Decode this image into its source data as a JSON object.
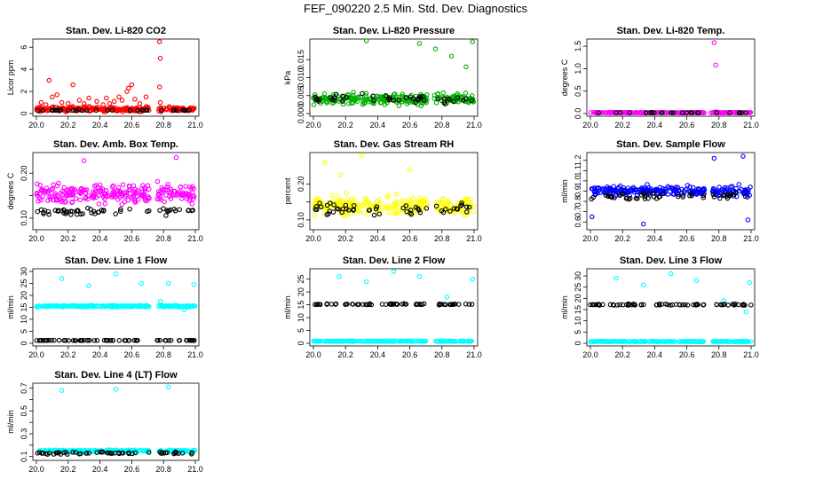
{
  "page": {
    "title": "FEF_090220  2.5 Min. Std. Dev. Diagnostics"
  },
  "chart_data": [
    {
      "type": "scatter",
      "title": "Stan. Dev. Li-820 CO2",
      "xlabel": "",
      "ylabel": "Licor ppm",
      "xlim": [
        20.0,
        21.0
      ],
      "ylim": [
        0,
        6.5
      ],
      "x_ticks": [
        "20.0",
        "20.2",
        "20.4",
        "20.6",
        "20.8",
        "21.0"
      ],
      "y_ticks": [
        0,
        2,
        4,
        6
      ],
      "series": [
        {
          "color": "#ff0000",
          "segments": [
            [
              20.0,
              20.71
            ],
            [
              20.77,
              21.0
            ]
          ],
          "base": 0.4,
          "noise": 0.35,
          "outliers": [
            [
              20.03,
              1.0
            ],
            [
              20.06,
              0.8
            ],
            [
              20.08,
              3.0
            ],
            [
              20.1,
              1.5
            ],
            [
              20.13,
              1.7
            ],
            [
              20.16,
              1.0
            ],
            [
              20.2,
              0.9
            ],
            [
              20.23,
              2.6
            ],
            [
              20.27,
              1.2
            ],
            [
              20.3,
              0.9
            ],
            [
              20.33,
              1.4
            ],
            [
              20.38,
              1.1
            ],
            [
              20.42,
              0.8
            ],
            [
              20.44,
              1.4
            ],
            [
              20.46,
              0.9
            ],
            [
              20.49,
              1.1
            ],
            [
              20.52,
              1.5
            ],
            [
              20.54,
              1.2
            ],
            [
              20.57,
              2.0
            ],
            [
              20.58,
              2.3
            ],
            [
              20.6,
              2.6
            ],
            [
              20.62,
              1.3
            ],
            [
              20.65,
              0.9
            ],
            [
              20.69,
              1.5
            ],
            [
              20.775,
              6.5
            ],
            [
              20.78,
              5.0
            ],
            [
              20.775,
              2.4
            ],
            [
              20.78,
              1.0
            ]
          ]
        },
        {
          "color": "#000000",
          "segments": [
            [
              20.0,
              20.71
            ],
            [
              20.77,
              21.0
            ]
          ],
          "base": 0.3,
          "noise": 0.08,
          "count": 35
        }
      ]
    },
    {
      "type": "scatter",
      "title": "Stan. Dev. Li-820 Pressure",
      "xlabel": "",
      "ylabel": "kPa",
      "xlim": [
        20.0,
        21.0
      ],
      "ylim": [
        0,
        0.02
      ],
      "x_ticks": [
        "20.0",
        "20.2",
        "20.4",
        "20.6",
        "20.8",
        "21.0"
      ],
      "y_ticks": [
        0,
        0.005,
        0.01,
        0.015
      ],
      "y_tick_labels": [
        "0.000",
        "0.005",
        "0.010",
        "0.015"
      ],
      "series": [
        {
          "color": "#00b000",
          "segments": [
            [
              20.0,
              20.71
            ],
            [
              20.75,
              21.0
            ]
          ],
          "base": 0.004,
          "noise": 0.0025,
          "outliers": [
            [
              20.33,
              0.0205
            ],
            [
              20.66,
              0.0195
            ],
            [
              20.99,
              0.02
            ],
            [
              20.76,
              0.018
            ],
            [
              20.86,
              0.016
            ],
            [
              20.95,
              0.013
            ]
          ]
        },
        {
          "color": "#000000",
          "segments": [
            [
              20.0,
              20.71
            ],
            [
              20.75,
              21.0
            ]
          ],
          "base": 0.004,
          "noise": 0.0022,
          "count": 45
        }
      ]
    },
    {
      "type": "scatter",
      "title": "Stan. Dev. Li-820 Temp.",
      "xlabel": "",
      "ylabel": "degrees C",
      "xlim": [
        20.0,
        21.0
      ],
      "ylim": [
        0,
        1.6
      ],
      "x_ticks": [
        "20.0",
        "20.2",
        "20.4",
        "20.6",
        "20.8",
        "21.0"
      ],
      "y_ticks": [
        0,
        0.5,
        1.0,
        1.5
      ],
      "y_tick_labels": [
        "0.0",
        "0.5",
        "1.0",
        "1.5"
      ],
      "series": [
        {
          "color": "#ff00ff",
          "segments": [
            [
              20.0,
              20.71
            ],
            [
              20.75,
              21.0
            ]
          ],
          "base": 0.02,
          "noise": 0.01,
          "outliers": [
            [
              20.77,
              1.58
            ],
            [
              20.78,
              1.08
            ],
            [
              20.78,
              0.04
            ]
          ]
        },
        {
          "color": "#000000",
          "segments": [
            [
              20.0,
              20.71
            ],
            [
              20.77,
              21.0
            ]
          ],
          "base": 0.02,
          "noise": 0.005,
          "count": 30
        }
      ]
    },
    {
      "type": "scatter",
      "title": "Stan. Dev. Amb. Box Temp.",
      "xlabel": "",
      "ylabel": "degrees C",
      "xlim": [
        20.0,
        21.0
      ],
      "ylim": [
        0.08,
        0.24
      ],
      "x_ticks": [
        "20.0",
        "20.2",
        "20.4",
        "20.6",
        "20.8",
        "21.0"
      ],
      "y_ticks": [
        0.1,
        0.15,
        0.2
      ],
      "y_tick_labels": [
        "0.10",
        "",
        "0.20"
      ],
      "series": [
        {
          "color": "#ff00ff",
          "segments": [
            [
              20.0,
              20.71
            ],
            [
              20.76,
              21.0
            ]
          ],
          "base": 0.155,
          "noise": 0.04,
          "outliers": [
            [
              20.88,
              0.235
            ],
            [
              20.3,
              0.228
            ]
          ]
        },
        {
          "color": "#000000",
          "segments": [
            [
              20.0,
              20.71
            ],
            [
              20.76,
              21.0
            ]
          ],
          "base": 0.115,
          "noise": 0.012,
          "count": 60
        }
      ]
    },
    {
      "type": "scatter",
      "title": "Stan. Dev. Gas Stream RH",
      "xlabel": "",
      "ylabel": "percent",
      "xlim": [
        20.0,
        21.0
      ],
      "ylim": [
        0.08,
        0.28
      ],
      "x_ticks": [
        "20.0",
        "20.2",
        "20.4",
        "20.6",
        "20.8",
        "21.0"
      ],
      "y_ticks": [
        0.1,
        0.15,
        0.2
      ],
      "y_tick_labels": [
        "0.10",
        "",
        "0.20"
      ],
      "series": [
        {
          "color": "#ffff00",
          "segments": [
            [
              20.0,
              20.71
            ],
            [
              20.75,
              21.0
            ]
          ],
          "base": 0.14,
          "noise": 0.04,
          "outliers": [
            [
              20.3,
              0.28
            ],
            [
              20.07,
              0.26
            ],
            [
              20.6,
              0.24
            ],
            [
              20.17,
              0.225
            ]
          ]
        },
        {
          "color": "#000000",
          "segments": [
            [
              20.0,
              20.71
            ],
            [
              20.75,
              21.0
            ]
          ],
          "base": 0.13,
          "noise": 0.03,
          "count": 55
        }
      ]
    },
    {
      "type": "scatter",
      "title": "Stan. Dev. Sample Flow",
      "xlabel": "",
      "ylabel": "ml/min",
      "xlim": [
        20.0,
        21.0
      ],
      "ylim": [
        0.55,
        1.25
      ],
      "x_ticks": [
        "20.0",
        "20.2",
        "20.4",
        "20.6",
        "20.8",
        "21.0"
      ],
      "y_ticks": [
        0.6,
        0.7,
        0.8,
        0.9,
        1.0,
        1.1,
        1.2
      ],
      "y_tick_labels": [
        "0.6",
        "0.7",
        "0.8",
        "0.9",
        "1.0",
        "1.1",
        "1.2"
      ],
      "series": [
        {
          "color": "#0000ff",
          "segments": [
            [
              20.0,
              20.71
            ],
            [
              20.76,
              21.0
            ]
          ],
          "base": 0.9,
          "noise": 0.08,
          "outliers": [
            [
              20.77,
              1.22
            ],
            [
              20.95,
              1.24
            ],
            [
              20.33,
              0.58
            ],
            [
              20.98,
              0.62
            ],
            [
              20.01,
              0.65
            ]
          ]
        },
        {
          "color": "#000000",
          "segments": [
            [
              20.0,
              20.71
            ],
            [
              20.76,
              21.0
            ]
          ],
          "base": 0.85,
          "noise": 0.06,
          "count": 55
        }
      ]
    },
    {
      "type": "scatter",
      "title": "Stan. Dev. Line 1 Flow",
      "xlabel": "",
      "ylabel": "ml/min",
      "xlim": [
        20.0,
        21.0
      ],
      "ylim": [
        0,
        30
      ],
      "x_ticks": [
        "20.0",
        "20.2",
        "20.4",
        "20.6",
        "20.8",
        "21.0"
      ],
      "y_ticks": [
        0,
        5,
        10,
        15,
        20,
        25,
        30
      ],
      "series": [
        {
          "color": "#00ffff",
          "segments": [
            [
              20.0,
              20.71
            ],
            [
              20.76,
              21.0
            ]
          ],
          "base": 15.5,
          "noise": 0.6,
          "outliers": [
            [
              20.16,
              27
            ],
            [
              20.33,
              24
            ],
            [
              20.5,
              29
            ],
            [
              20.66,
              25
            ],
            [
              20.83,
              25
            ],
            [
              20.99,
              24.5
            ],
            [
              20.78,
              17.5
            ],
            [
              20.93,
              14
            ]
          ]
        },
        {
          "color": "#000000",
          "segments": [
            [
              20.0,
              20.71
            ],
            [
              20.76,
              21.0
            ]
          ],
          "base": 1.2,
          "noise": 0.1,
          "count": 70
        }
      ]
    },
    {
      "type": "scatter",
      "title": "Stan. Dev. Line 2 Flow",
      "xlabel": "",
      "ylabel": "ml/min",
      "xlim": [
        20.0,
        21.0
      ],
      "ylim": [
        0,
        28
      ],
      "x_ticks": [
        "20.0",
        "20.2",
        "20.4",
        "20.6",
        "20.8",
        "21.0"
      ],
      "y_ticks": [
        0,
        5,
        10,
        15,
        20,
        25
      ],
      "series": [
        {
          "color": "#00ffff",
          "segments": [
            [
              20.0,
              20.71
            ],
            [
              20.76,
              21.0
            ]
          ],
          "base": 0.8,
          "noise": 0.2,
          "outliers": [
            [
              20.16,
              26
            ],
            [
              20.33,
              24
            ],
            [
              20.5,
              28
            ],
            [
              20.66,
              26
            ],
            [
              20.83,
              18
            ],
            [
              20.99,
              25
            ]
          ]
        },
        {
          "color": "#000000",
          "segments": [
            [
              20.0,
              20.71
            ],
            [
              20.76,
              21.0
            ]
          ],
          "base": 15.2,
          "noise": 0.4,
          "count": 70
        }
      ]
    },
    {
      "type": "scatter",
      "title": "Stan. Dev. Line 3 Flow",
      "xlabel": "",
      "ylabel": "ml/min",
      "xlim": [
        20.0,
        21.0
      ],
      "ylim": [
        0,
        32
      ],
      "x_ticks": [
        "20.0",
        "20.2",
        "20.4",
        "20.6",
        "20.8",
        "21.0"
      ],
      "y_ticks": [
        0,
        5,
        10,
        15,
        20,
        25,
        30
      ],
      "series": [
        {
          "color": "#00ffff",
          "segments": [
            [
              20.0,
              20.71
            ],
            [
              20.76,
              21.0
            ]
          ],
          "base": 0.8,
          "noise": 0.2,
          "outliers": [
            [
              20.16,
              29
            ],
            [
              20.33,
              26
            ],
            [
              20.5,
              31
            ],
            [
              20.66,
              28
            ],
            [
              20.83,
              19
            ],
            [
              20.99,
              27
            ],
            [
              20.97,
              14
            ]
          ]
        },
        {
          "color": "#000000",
          "segments": [
            [
              20.0,
              20.71
            ],
            [
              20.76,
              21.0
            ]
          ],
          "base": 17.2,
          "noise": 0.5,
          "count": 70
        }
      ]
    },
    {
      "type": "scatter",
      "title": "Stan. Dev. Line 4 (LT) Flow",
      "xlabel": "",
      "ylabel": "ml/min",
      "xlim": [
        20.0,
        21.0
      ],
      "ylim": [
        0.09,
        0.72
      ],
      "x_ticks": [
        "20.0",
        "20.2",
        "20.4",
        "20.6",
        "20.8",
        "21.0"
      ],
      "y_ticks": [
        0.1,
        0.2,
        0.3,
        0.4,
        0.5,
        0.6,
        0.7
      ],
      "y_tick_labels": [
        "0.1",
        "",
        "0.3",
        "",
        "0.5",
        "",
        "0.7"
      ],
      "series": [
        {
          "color": "#00ffff",
          "segments": [
            [
              20.0,
              20.71
            ],
            [
              20.76,
              21.0
            ]
          ],
          "base": 0.15,
          "noise": 0.015,
          "outliers": [
            [
              20.16,
              0.68
            ],
            [
              20.5,
              0.69
            ],
            [
              20.83,
              0.71
            ]
          ]
        },
        {
          "color": "#000000",
          "segments": [
            [
              20.0,
              20.71
            ],
            [
              20.76,
              21.0
            ]
          ],
          "base": 0.13,
          "noise": 0.02,
          "count": 60
        }
      ]
    }
  ]
}
